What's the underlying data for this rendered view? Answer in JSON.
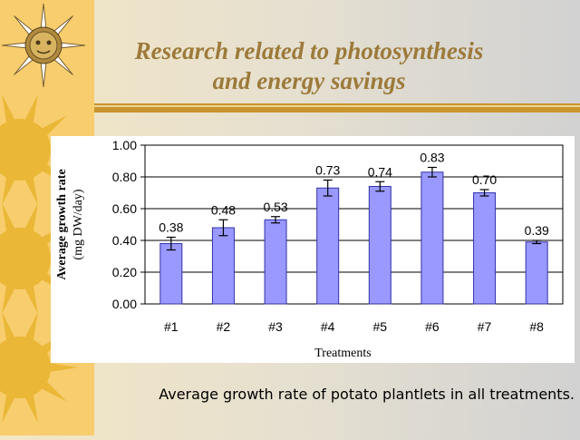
{
  "slide": {
    "title_line1": "Research related to photosynthesis",
    "title_line2": "and energy savings",
    "caption": "Average growth rate of potato plantlets in all treatments.",
    "decoration": "sun-icon"
  },
  "colors": {
    "bar_fill": "#9999ff",
    "bar_stroke": "#3333aa",
    "title": "#9c7a3a",
    "rule": "#c8952f",
    "strip": "#f7cd6e"
  },
  "chart_data": {
    "type": "bar",
    "categories": [
      "#1",
      "#2",
      "#3",
      "#4",
      "#5",
      "#6",
      "#7",
      "#8"
    ],
    "values": [
      0.38,
      0.48,
      0.53,
      0.73,
      0.74,
      0.83,
      0.7,
      0.39
    ],
    "value_labels": [
      "0.38",
      "0.48",
      "0.53",
      "0.73",
      "0.74",
      "0.83",
      "0.70",
      "0.39"
    ],
    "error": [
      0.04,
      0.05,
      0.02,
      0.05,
      0.03,
      0.03,
      0.02,
      0.01
    ],
    "title": "",
    "xlabel": "Treatments",
    "ylabel_line1": "Average growth rate",
    "ylabel_line2": "(mg DW/day)",
    "ylim": [
      0,
      1.0
    ],
    "yticks": [
      "0.00",
      "0.20",
      "0.40",
      "0.60",
      "0.80",
      "1.00"
    ],
    "ytick_values": [
      0,
      0.2,
      0.4,
      0.6,
      0.8,
      1.0
    ],
    "grid": true,
    "legend": "none"
  }
}
